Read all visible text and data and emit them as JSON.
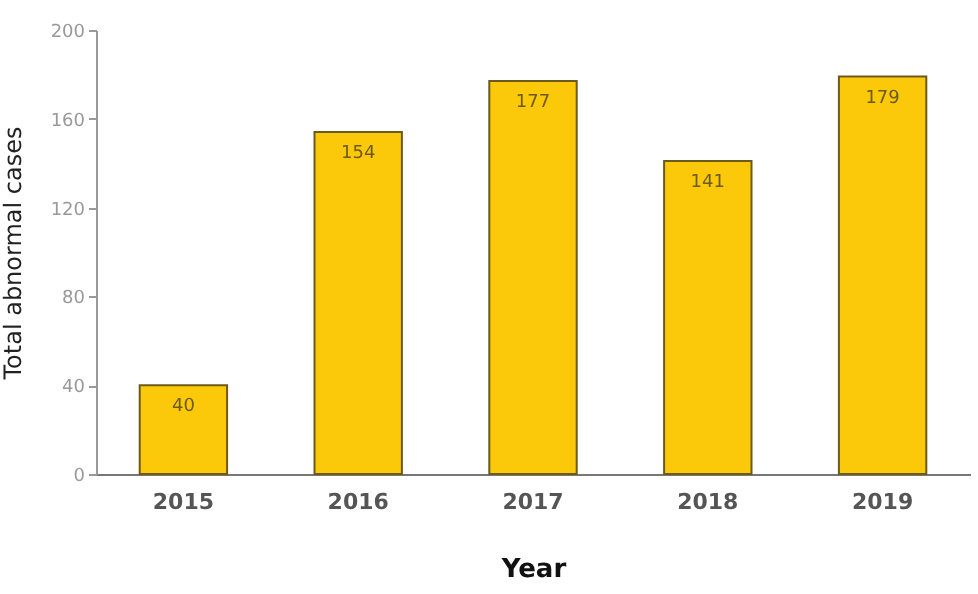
{
  "chart_data": {
    "type": "bar",
    "xlabel": "Year",
    "ylabel": "Total abnormal cases",
    "categories": [
      "2015",
      "2016",
      "2017",
      "2018",
      "2019"
    ],
    "values": [
      40,
      154,
      177,
      141,
      179
    ],
    "color": "#fcc80a",
    "ylim": [
      0,
      200
    ],
    "yticks": [
      0,
      40,
      80,
      120,
      160,
      200
    ],
    "grid": false,
    "data_labels": true
  }
}
